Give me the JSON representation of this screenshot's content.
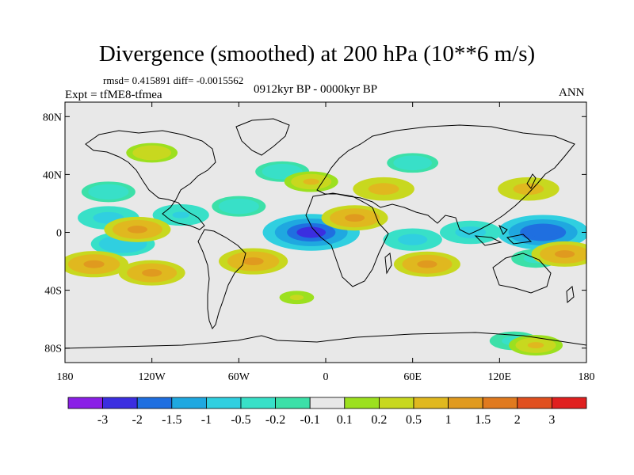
{
  "chart_data": {
    "type": "heatmap",
    "title": "Divergence (smoothed) at 200 hPa (10**6 m/s)",
    "rmsd_label": "rmsd= 0.415891 diff= -0.0015562",
    "experiment_label": "Expt = tfME8-tfmea",
    "period_label": "0912kyr BP - 0000kyr BP",
    "season_label": "ANN",
    "x_axis": {
      "range": [
        -180,
        180
      ],
      "ticks": [
        -180,
        -120,
        -60,
        0,
        60,
        120,
        180
      ],
      "tick_labels": [
        "180",
        "120W",
        "60W",
        "0",
        "60E",
        "120E",
        "180"
      ]
    },
    "y_axis": {
      "range": [
        -90,
        90
      ],
      "ticks": [
        80,
        40,
        0,
        -40,
        -80
      ],
      "tick_labels": [
        "80N",
        "40N",
        "0",
        "40S",
        "80S"
      ]
    },
    "colorbar": {
      "levels": [
        "-3",
        "-2",
        "-1.5",
        "-1",
        "-0.5",
        "-0.2",
        "-0.1",
        "0.1",
        "0.2",
        "0.5",
        "1",
        "1.5",
        "2",
        "3"
      ],
      "colors": [
        "#8a1fe6",
        "#3b2ee0",
        "#1f6fe0",
        "#1fa8e0",
        "#30cfe0",
        "#38e0c8",
        "#3ce0a8",
        "#e8e8e8",
        "#9ce01f",
        "#c8d81f",
        "#e0b81f",
        "#e09a1f",
        "#e07a1f",
        "#e0501f",
        "#e0201f"
      ]
    },
    "field_regions": [
      {
        "lon": -10,
        "lat": 0,
        "value": -2.2
      },
      {
        "lon": 150,
        "lat": 0,
        "value": -2.0
      },
      {
        "lon": -150,
        "lat": 10,
        "value": -0.8
      },
      {
        "lon": -100,
        "lat": 12,
        "value": -0.6
      },
      {
        "lon": -60,
        "lat": 18,
        "value": -0.5
      },
      {
        "lon": 60,
        "lat": -5,
        "value": -0.7
      },
      {
        "lon": 100,
        "lat": 0,
        "value": -0.8
      },
      {
        "lon": -140,
        "lat": -8,
        "value": -0.9
      },
      {
        "lon": -150,
        "lat": 28,
        "value": -0.5
      },
      {
        "lon": -30,
        "lat": 42,
        "value": -0.5
      },
      {
        "lon": 60,
        "lat": 48,
        "value": -0.4
      },
      {
        "lon": 145,
        "lat": -18,
        "value": -0.3
      },
      {
        "lon": 130,
        "lat": -75,
        "value": -0.3
      },
      {
        "lon": 20,
        "lat": 10,
        "value": 1.0
      },
      {
        "lon": 40,
        "lat": 30,
        "value": 0.8
      },
      {
        "lon": -130,
        "lat": 2,
        "value": 1.0
      },
      {
        "lon": -160,
        "lat": -22,
        "value": 1.1
      },
      {
        "lon": -120,
        "lat": -28,
        "value": 1.0
      },
      {
        "lon": -50,
        "lat": -20,
        "value": 1.1
      },
      {
        "lon": 70,
        "lat": -22,
        "value": 1.0
      },
      {
        "lon": 140,
        "lat": 30,
        "value": 0.8
      },
      {
        "lon": 165,
        "lat": -15,
        "value": 1.0
      },
      {
        "lon": -120,
        "lat": 55,
        "value": 0.4
      },
      {
        "lon": -10,
        "lat": 35,
        "value": 0.5
      },
      {
        "lon": 145,
        "lat": -78,
        "value": 0.5
      },
      {
        "lon": -20,
        "lat": -45,
        "value": 0.2
      }
    ]
  }
}
